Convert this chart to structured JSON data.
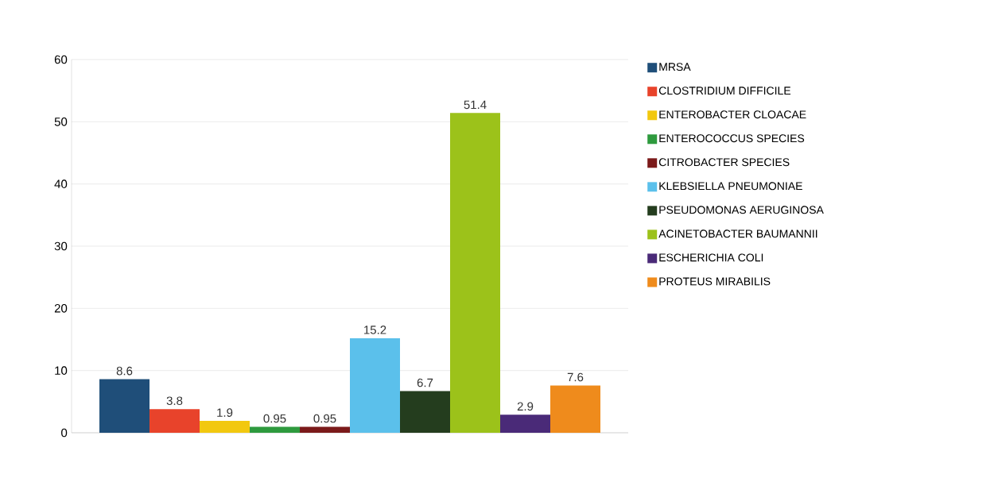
{
  "chart_data": {
    "type": "bar",
    "categories": [
      null
    ],
    "series": [
      {
        "name": "MRSA",
        "color": "#1f4e79",
        "values": [
          8.6
        ]
      },
      {
        "name": "CLOSTRIDIUM DIFFICILE",
        "color": "#e8432b",
        "values": [
          3.8
        ]
      },
      {
        "name": "ENTEROBACTER CLOACAE",
        "color": "#f2c80f",
        "values": [
          1.9
        ]
      },
      {
        "name": "ENTEROCOCCUS SPECIES",
        "color": "#2e9a3e",
        "values": [
          0.95
        ]
      },
      {
        "name": "CITROBACTER SPECIES",
        "color": "#7b1a1a",
        "values": [
          0.95
        ]
      },
      {
        "name": "KLEBSIELLA PNEUMONIAE",
        "color": "#5bc0eb",
        "values": [
          15.2
        ]
      },
      {
        "name": "PSEUDOMONAS AERUGINOSA",
        "color": "#243d1e",
        "values": [
          6.7
        ]
      },
      {
        "name": "ACINETOBACTER BAUMANNII",
        "color": "#9cc21a",
        "values": [
          51.4
        ]
      },
      {
        "name": "ESCHERICHIA COLI",
        "color": "#4a2a78",
        "values": [
          2.9
        ]
      },
      {
        "name": "PROTEUS MIRABILIS",
        "color": "#ef8b1c",
        "values": [
          7.6
        ]
      }
    ],
    "ylim": [
      0,
      60
    ],
    "yticks": [
      0,
      10,
      20,
      30,
      40,
      50,
      60
    ],
    "grid": "y",
    "legend": "right",
    "data_labels": true
  }
}
